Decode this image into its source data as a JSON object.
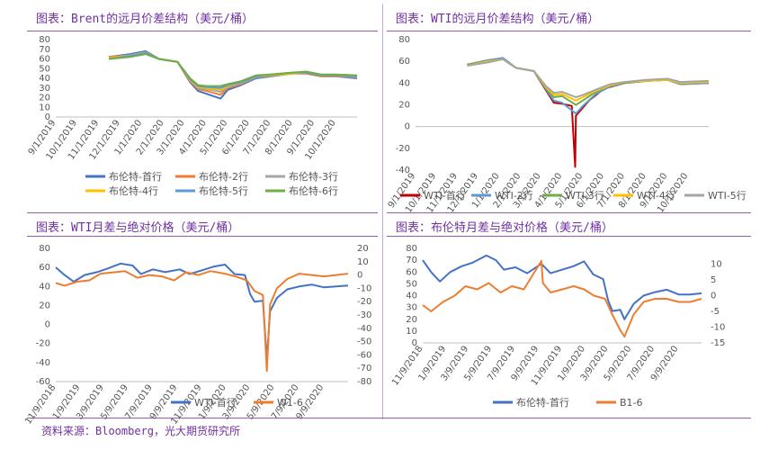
{
  "panels": {
    "brent_title": "图表：Brent的远月价差结构（美元/桶）",
    "wti_title": "图表：WTI的远月价差结构（美元/桶）",
    "wti_spread_title": "图表：WTI月差与绝对价格（美元/桶）",
    "brent_spread_title": "图表：布伦特月差与绝对价格（美元/桶）"
  },
  "footer": {
    "source": "资料来源：Bloomberg，光大期货研究所"
  },
  "chart_data": [
    {
      "id": "brent-curve",
      "type": "line",
      "title": "图表：Brent的远月价差结构（美元/桶）",
      "x_ticks": [
        "9/1/2019",
        "10/1/2019",
        "11/1/2019",
        "12/1/2019",
        "1/1/2020",
        "2/1/2020",
        "3/1/2020",
        "4/1/2020",
        "5/1/2020",
        "6/1/2020",
        "7/1/2020",
        "8/1/2020",
        "9/1/2020",
        "10/1/2020"
      ],
      "x_range": [
        "2019-09-01",
        "2020-10-31"
      ],
      "ylim": [
        0,
        80
      ],
      "y_ticks": [
        "0",
        "10",
        "20",
        "30",
        "40",
        "50",
        "60",
        "70",
        "80"
      ],
      "legend_position": "bottom",
      "grid": false,
      "series": [
        {
          "name": "布伦特-首行",
          "color": "#4472c4",
          "x": [
            "2019-11-15",
            "2019-12-15",
            "2020-01-06",
            "2020-01-25",
            "2020-02-20",
            "2020-03-09",
            "2020-03-20",
            "2020-04-01",
            "2020-04-21",
            "2020-05-01",
            "2020-05-20",
            "2020-06-10",
            "2020-07-01",
            "2020-08-01",
            "2020-08-20",
            "2020-09-10",
            "2020-10-01",
            "2020-10-31"
          ],
          "y": [
            62,
            65,
            68,
            60,
            57,
            36,
            27,
            24,
            19,
            28,
            33,
            40,
            42,
            45,
            45,
            42,
            42,
            40
          ]
        },
        {
          "name": "布伦特-2行",
          "color": "#ed7d31",
          "x": [
            "2019-11-15",
            "2019-12-15",
            "2020-01-06",
            "2020-01-25",
            "2020-02-20",
            "2020-03-09",
            "2020-03-20",
            "2020-04-01",
            "2020-04-21",
            "2020-05-01",
            "2020-05-20",
            "2020-06-10",
            "2020-07-01",
            "2020-08-01",
            "2020-08-20",
            "2020-09-10",
            "2020-10-01",
            "2020-10-31"
          ],
          "y": [
            62,
            64,
            67,
            60,
            57,
            37,
            29,
            27,
            23,
            30,
            34,
            41,
            43,
            45,
            45,
            42,
            42,
            41
          ]
        },
        {
          "name": "布伦特-3行",
          "color": "#a5a5a5",
          "x": [
            "2019-11-15",
            "2019-12-15",
            "2020-01-06",
            "2020-01-25",
            "2020-02-20",
            "2020-03-09",
            "2020-03-20",
            "2020-04-01",
            "2020-04-21",
            "2020-05-01",
            "2020-05-20",
            "2020-06-10",
            "2020-07-01",
            "2020-08-01",
            "2020-08-20",
            "2020-09-10",
            "2020-10-01",
            "2020-10-31"
          ],
          "y": [
            61,
            64,
            67,
            60,
            57,
            38,
            30,
            29,
            26,
            31,
            35,
            41,
            43,
            45,
            46,
            43,
            43,
            41
          ]
        },
        {
          "name": "布伦特-4行",
          "color": "#ffc000",
          "x": [
            "2019-11-15",
            "2019-12-15",
            "2020-01-06",
            "2020-01-25",
            "2020-02-20",
            "2020-03-09",
            "2020-03-20",
            "2020-04-01",
            "2020-04-21",
            "2020-05-01",
            "2020-05-20",
            "2020-06-10",
            "2020-07-01",
            "2020-08-01",
            "2020-08-20",
            "2020-09-10",
            "2020-10-01",
            "2020-10-31"
          ],
          "y": [
            61,
            63,
            66,
            60,
            57,
            38,
            31,
            30,
            28,
            32,
            36,
            42,
            43,
            45,
            46,
            43,
            43,
            42
          ]
        },
        {
          "name": "布伦特-5行",
          "color": "#5b9bd5",
          "x": [
            "2019-11-15",
            "2019-12-15",
            "2020-01-06",
            "2020-01-25",
            "2020-02-20",
            "2020-03-09",
            "2020-03-20",
            "2020-04-01",
            "2020-04-21",
            "2020-05-01",
            "2020-05-20",
            "2020-06-10",
            "2020-07-01",
            "2020-08-01",
            "2020-08-20",
            "2020-09-10",
            "2020-10-01",
            "2020-10-31"
          ],
          "y": [
            60,
            63,
            66,
            60,
            57,
            39,
            32,
            31,
            30,
            33,
            36,
            42,
            44,
            46,
            46,
            43,
            43,
            42
          ]
        },
        {
          "name": "布伦特-6行",
          "color": "#70ad47",
          "x": [
            "2019-11-15",
            "2019-12-15",
            "2020-01-06",
            "2020-01-25",
            "2020-02-20",
            "2020-03-09",
            "2020-03-20",
            "2020-04-01",
            "2020-04-21",
            "2020-05-01",
            "2020-05-20",
            "2020-06-10",
            "2020-07-01",
            "2020-08-01",
            "2020-08-20",
            "2020-09-10",
            "2020-10-01",
            "2020-10-31"
          ],
          "y": [
            60,
            62,
            65,
            60,
            57,
            40,
            33,
            32,
            32,
            34,
            37,
            43,
            44,
            46,
            47,
            44,
            44,
            43
          ]
        }
      ]
    },
    {
      "id": "wti-curve",
      "type": "line",
      "title": "图表：WTI的远月价差结构（美元/桶）",
      "x_ticks": [
        "9/1/2019",
        "10/1/2019",
        "11/1/2019",
        "12/1/2019",
        "1/1/2020",
        "2/1/2020",
        "3/1/2020",
        "4/1/2020",
        "5/1/2020",
        "6/1/2020",
        "7/1/2020",
        "8/1/2020",
        "9/1/2020",
        "10/1/2020"
      ],
      "x_range": [
        "2019-09-01",
        "2020-10-31"
      ],
      "ylim": [
        -40,
        80
      ],
      "y_ticks": [
        "-40",
        "-20",
        "0",
        "20",
        "40",
        "60",
        "80"
      ],
      "legend_position": "bottom",
      "grid": false,
      "series": [
        {
          "name": "WTI-首行",
          "color": "#c00000",
          "x": [
            "2019-11-15",
            "2019-12-15",
            "2020-01-06",
            "2020-01-25",
            "2020-02-20",
            "2020-03-09",
            "2020-03-20",
            "2020-04-01",
            "2020-04-15",
            "2020-04-20",
            "2020-04-21",
            "2020-04-25",
            "2020-05-10",
            "2020-06-01",
            "2020-07-01",
            "2020-08-01",
            "2020-09-01",
            "2020-09-20",
            "2020-10-31"
          ],
          "y": [
            57,
            61,
            63,
            54,
            51,
            33,
            22,
            21,
            19,
            -37,
            10,
            13,
            24,
            35,
            40,
            42,
            43,
            39,
            40
          ]
        },
        {
          "name": "WTI-2行",
          "color": "#5b9bd5",
          "x": [
            "2019-11-15",
            "2019-12-15",
            "2020-01-06",
            "2020-01-25",
            "2020-02-20",
            "2020-03-09",
            "2020-03-20",
            "2020-04-01",
            "2020-04-21",
            "2020-05-01",
            "2020-05-20",
            "2020-06-10",
            "2020-07-01",
            "2020-08-01",
            "2020-09-01",
            "2020-09-20",
            "2020-10-31"
          ],
          "y": [
            57,
            61,
            63,
            54,
            51,
            34,
            24,
            22,
            12,
            19,
            30,
            37,
            40,
            42,
            43,
            39,
            40
          ]
        },
        {
          "name": "WTI-3行",
          "color": "#70ad47",
          "x": [
            "2019-11-15",
            "2019-12-15",
            "2020-01-06",
            "2020-01-25",
            "2020-02-20",
            "2020-03-09",
            "2020-03-20",
            "2020-04-01",
            "2020-04-21",
            "2020-05-01",
            "2020-05-20",
            "2020-06-10",
            "2020-07-01",
            "2020-08-01",
            "2020-09-01",
            "2020-09-20",
            "2020-10-31"
          ],
          "y": [
            57,
            60,
            62,
            54,
            51,
            35,
            27,
            28,
            20,
            24,
            32,
            38,
            40,
            42,
            43,
            40,
            41
          ]
        },
        {
          "name": "WTI-4行",
          "color": "#ffc000",
          "x": [
            "2019-11-15",
            "2019-12-15",
            "2020-01-06",
            "2020-01-25",
            "2020-02-20",
            "2020-03-09",
            "2020-03-20",
            "2020-04-01",
            "2020-04-21",
            "2020-05-01",
            "2020-05-20",
            "2020-06-10",
            "2020-07-01",
            "2020-08-01",
            "2020-09-01",
            "2020-09-20",
            "2020-10-31"
          ],
          "y": [
            56,
            60,
            62,
            54,
            51,
            36,
            29,
            30,
            24,
            27,
            33,
            38,
            41,
            42,
            43,
            40,
            41
          ]
        },
        {
          "name": "WTI-5行",
          "color": "#a5a5a5",
          "x": [
            "2019-11-15",
            "2019-12-15",
            "2020-01-06",
            "2020-01-25",
            "2020-02-20",
            "2020-03-09",
            "2020-03-20",
            "2020-04-01",
            "2020-04-21",
            "2020-05-01",
            "2020-05-20",
            "2020-06-10",
            "2020-07-01",
            "2020-08-01",
            "2020-09-01",
            "2020-09-20",
            "2020-10-31"
          ],
          "y": [
            56,
            59,
            62,
            54,
            51,
            37,
            31,
            32,
            27,
            29,
            34,
            39,
            41,
            43,
            44,
            41,
            42
          ]
        }
      ]
    },
    {
      "id": "wti-spread",
      "type": "line",
      "title": "图表：WTI月差与绝对价格（美元/桶）",
      "x_ticks": [
        "11/9/2018",
        "1/9/2019",
        "3/9/2019",
        "5/9/2019",
        "7/9/2019",
        "9/9/2019",
        "11/9/2019",
        "1/9/2020",
        "3/9/2020",
        "5/9/2020",
        "7/9/2020",
        "9/9/2020"
      ],
      "x_range": [
        "2018-11-09",
        "2020-11-09"
      ],
      "ylim_left": [
        -60,
        80
      ],
      "y_ticks_left": [
        "-60",
        "-40",
        "-20",
        "0",
        "20",
        "40",
        "60",
        "80"
      ],
      "ylim_right": [
        -80,
        20
      ],
      "y_ticks_right": [
        "-80",
        "-70",
        "-60",
        "-50",
        "-40",
        "-30",
        "-20",
        "-10",
        "0",
        "10",
        "20"
      ],
      "legend_position": "bottom",
      "grid": false,
      "series": [
        {
          "name": "WTI-首行",
          "color": "#4472c4",
          "axis": "left",
          "x": [
            "2018-11-09",
            "2018-12-01",
            "2018-12-24",
            "2019-01-20",
            "2019-02-20",
            "2019-03-20",
            "2019-04-20",
            "2019-05-20",
            "2019-06-10",
            "2019-07-10",
            "2019-08-10",
            "2019-09-15",
            "2019-10-10",
            "2019-11-10",
            "2019-12-10",
            "2020-01-06",
            "2020-01-30",
            "2020-02-25",
            "2020-03-09",
            "2020-03-20",
            "2020-04-10",
            "2020-04-20",
            "2020-04-28",
            "2020-05-15",
            "2020-06-10",
            "2020-07-10",
            "2020-08-10",
            "2020-09-10",
            "2020-10-10",
            "2020-11-09"
          ],
          "y": [
            60,
            52,
            45,
            52,
            55,
            59,
            64,
            62,
            53,
            58,
            55,
            58,
            53,
            57,
            61,
            63,
            53,
            52,
            32,
            24,
            25,
            -37,
            14,
            28,
            37,
            40,
            42,
            39,
            40,
            41
          ]
        },
        {
          "name": "W1-6",
          "color": "#ed7d31",
          "axis": "right",
          "x": [
            "2018-11-09",
            "2018-12-01",
            "2019-01-01",
            "2019-02-01",
            "2019-03-01",
            "2019-04-01",
            "2019-05-01",
            "2019-06-01",
            "2019-07-01",
            "2019-08-01",
            "2019-09-01",
            "2019-10-01",
            "2019-11-01",
            "2019-12-01",
            "2020-01-06",
            "2020-02-01",
            "2020-03-01",
            "2020-03-20",
            "2020-04-10",
            "2020-04-20",
            "2020-04-28",
            "2020-05-15",
            "2020-06-10",
            "2020-07-10",
            "2020-08-10",
            "2020-09-10",
            "2020-10-10",
            "2020-11-09"
          ],
          "y": [
            -6,
            -8,
            -5,
            -4,
            1,
            2,
            3,
            -2,
            0,
            -1,
            -4,
            2,
            0,
            3,
            1,
            -1,
            -4,
            -12,
            -15,
            -72,
            -22,
            -10,
            -3,
            1,
            0,
            -1,
            0,
            1
          ]
        }
      ]
    },
    {
      "id": "brent-spread",
      "type": "line",
      "title": "图表：布伦特月差与绝对价格（美元/桶）",
      "x_ticks": [
        "11/9/2018",
        "1/9/2019",
        "3/9/2019",
        "5/9/2019",
        "7/9/2019",
        "9/9/2019",
        "11/9/2019",
        "1/9/2020",
        "3/9/2020",
        "5/9/2020",
        "7/9/2020",
        "9/9/2020"
      ],
      "x_range": [
        "2018-11-09",
        "2020-11-09"
      ],
      "ylim_left": [
        0,
        80
      ],
      "y_ticks_left": [
        "0",
        "10",
        "20",
        "30",
        "40",
        "50",
        "60",
        "70",
        "80"
      ],
      "ylim_right": [
        -15,
        15
      ],
      "y_ticks_right": [
        "-15",
        "-10",
        "-5",
        "0",
        "5",
        "10"
      ],
      "legend_position": "bottom",
      "grid": false,
      "series": [
        {
          "name": "布伦特-首行",
          "color": "#4472c4",
          "axis": "left",
          "x": [
            "2018-11-09",
            "2018-12-01",
            "2018-12-24",
            "2019-01-20",
            "2019-02-20",
            "2019-03-20",
            "2019-04-25",
            "2019-05-20",
            "2019-06-10",
            "2019-07-10",
            "2019-08-10",
            "2019-09-16",
            "2019-10-10",
            "2019-11-10",
            "2019-12-10",
            "2020-01-06",
            "2020-01-30",
            "2020-02-25",
            "2020-03-09",
            "2020-03-20",
            "2020-04-10",
            "2020-04-21",
            "2020-05-15",
            "2020-06-10",
            "2020-07-10",
            "2020-08-10",
            "2020-09-10",
            "2020-10-10",
            "2020-11-09"
          ],
          "y": [
            70,
            60,
            52,
            60,
            65,
            68,
            74,
            70,
            62,
            64,
            59,
            67,
            59,
            62,
            65,
            69,
            58,
            54,
            36,
            27,
            28,
            20,
            33,
            40,
            43,
            45,
            41,
            41,
            42
          ]
        },
        {
          "name": "B1-6",
          "color": "#ed7d31",
          "axis": "right",
          "x": [
            "2018-11-09",
            "2018-12-01",
            "2019-01-01",
            "2019-02-01",
            "2019-03-01",
            "2019-04-01",
            "2019-05-01",
            "2019-06-01",
            "2019-07-01",
            "2019-08-01",
            "2019-09-16",
            "2019-09-20",
            "2019-10-10",
            "2019-11-10",
            "2019-12-10",
            "2020-01-06",
            "2020-02-01",
            "2020-03-01",
            "2020-03-20",
            "2020-04-10",
            "2020-04-21",
            "2020-05-15",
            "2020-06-10",
            "2020-07-10",
            "2020-08-10",
            "2020-09-10",
            "2020-10-10",
            "2020-11-09"
          ],
          "y": [
            -3,
            -5,
            -2,
            0,
            3,
            2,
            4,
            1,
            3,
            2,
            11,
            4,
            1,
            2,
            3,
            2,
            0,
            -1,
            -6,
            -11,
            -13,
            -6,
            -2,
            -1,
            -1,
            -2,
            -2,
            -1
          ]
        }
      ]
    }
  ]
}
